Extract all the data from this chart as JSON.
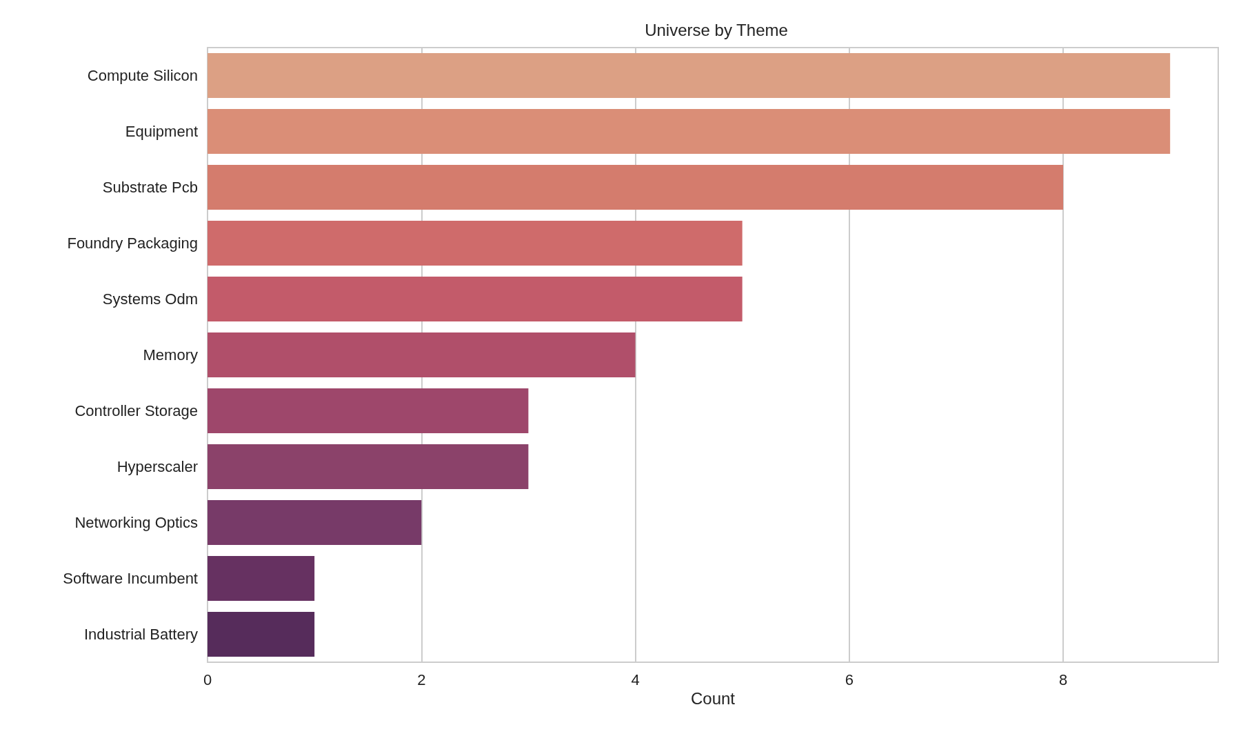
{
  "chart_data": {
    "type": "bar",
    "orientation": "horizontal",
    "title": "Universe by Theme",
    "xlabel": "Count",
    "categories": [
      "Compute Silicon",
      "Equipment",
      "Substrate Pcb",
      "Foundry Packaging",
      "Systems Odm",
      "Memory",
      "Controller Storage",
      "Hyperscaler",
      "Networking Optics",
      "Software Incumbent",
      "Industrial Battery"
    ],
    "values": [
      9,
      9,
      8,
      5,
      5,
      4,
      3,
      3,
      2,
      1,
      1
    ],
    "colors": [
      "#dca084",
      "#da8e77",
      "#d47c6d",
      "#cf6b6b",
      "#c35b6a",
      "#b04f6a",
      "#9e476b",
      "#8b426a",
      "#773a68",
      "#663161",
      "#562c5b"
    ],
    "xlim": [
      0,
      9.45
    ],
    "xticks": [
      0,
      2,
      4,
      6,
      8
    ],
    "grid": "x"
  }
}
